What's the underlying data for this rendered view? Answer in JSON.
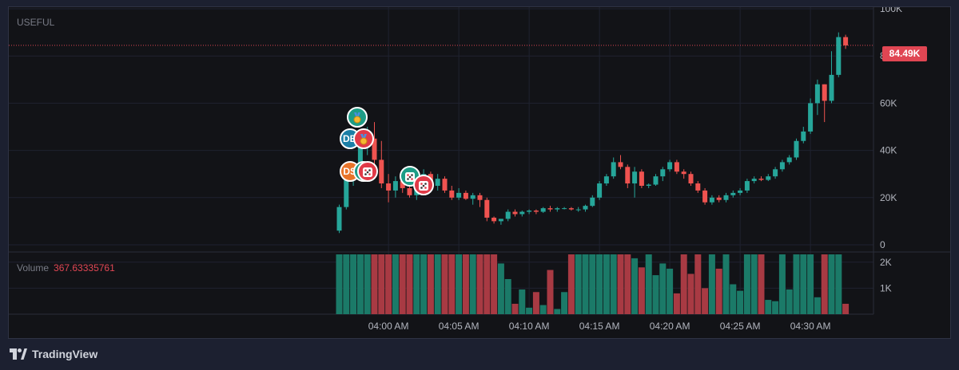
{
  "pane_title": "USEFUL",
  "last_price_label": "84.49K",
  "volume": {
    "label": "Volume",
    "value": "367.63335761"
  },
  "brand": "TradingView",
  "colors": {
    "up": "#26a69a",
    "down": "#ef5350",
    "price_tag": "#e04653",
    "background": "#121317",
    "grid": "#1f2230",
    "text": "#b2b5be"
  },
  "markers": [
    {
      "label": "",
      "icon": "medal-icon",
      "color": "#1d9c86",
      "time": "03:57:45",
      "price": 54000
    },
    {
      "label": "DB",
      "icon": "",
      "color": "#1b7fa6",
      "time": "03:57:15",
      "price": 45000
    },
    {
      "label": "",
      "icon": "medal-icon",
      "color": "#e03a48",
      "time": "03:58:15",
      "price": 45000
    },
    {
      "label": "DS",
      "icon": "",
      "color": "#e8742a",
      "time": "03:57:15",
      "price": 31000
    },
    {
      "label": "",
      "icon": "dice-icon",
      "color": "#1d9c86",
      "time": "03:58:15",
      "price": 31000
    },
    {
      "label": "",
      "icon": "dice-icon",
      "color": "#e03a48",
      "time": "03:58:30",
      "price": 31000
    },
    {
      "label": "",
      "icon": "dice-icon",
      "color": "#1d9c86",
      "time": "04:01:30",
      "price": 29000
    },
    {
      "label": "",
      "icon": "dice-icon",
      "color": "#e03a48",
      "time": "04:02:30",
      "price": 25500
    }
  ],
  "chart_data": {
    "type": "candlestick",
    "title": "USEFUL",
    "x_axis": {
      "tick_labels": [
        "04:00 AM",
        "04:05 AM",
        "04:10 AM",
        "04:15 AM",
        "04:20 AM",
        "04:25 AM",
        "04:30 AM"
      ]
    },
    "y_axis": {
      "tick_labels": [
        "0",
        "20K",
        "40K",
        "60K",
        "80K",
        "100K"
      ],
      "range": [
        0,
        100000
      ]
    },
    "volume_axis": {
      "tick_labels": [
        "1K",
        "2K"
      ],
      "range": [
        0,
        2300
      ]
    },
    "last_price": 84490,
    "bar_interval_seconds": 30,
    "first_bar_time": "03:56:30",
    "ohlc": [
      [
        6000,
        17000,
        5000,
        16000
      ],
      [
        16000,
        30000,
        15000,
        29000
      ],
      [
        29000,
        35000,
        25000,
        34000
      ],
      [
        34000,
        48000,
        33000,
        42000
      ],
      [
        42000,
        50000,
        38000,
        45000
      ],
      [
        45000,
        52000,
        33000,
        36000
      ],
      [
        36000,
        44000,
        24000,
        26000
      ],
      [
        26000,
        30000,
        18000,
        23000
      ],
      [
        23000,
        29000,
        20000,
        27000
      ],
      [
        27000,
        29000,
        22000,
        24000
      ],
      [
        24000,
        28000,
        20000,
        21000
      ],
      [
        21000,
        30000,
        19000,
        28000
      ],
      [
        28000,
        32000,
        26000,
        30000
      ],
      [
        30000,
        31000,
        24000,
        25000
      ],
      [
        25000,
        30000,
        23000,
        28000
      ],
      [
        28000,
        29000,
        22000,
        23000
      ],
      [
        23000,
        25000,
        19000,
        20000
      ],
      [
        20000,
        24000,
        19000,
        22000
      ],
      [
        22000,
        23000,
        19000,
        19500
      ],
      [
        19500,
        22000,
        17000,
        21000
      ],
      [
        21000,
        22000,
        16000,
        19000
      ],
      [
        19000,
        20000,
        10000,
        11500
      ],
      [
        11500,
        12000,
        9000,
        10000
      ],
      [
        10000,
        11000,
        8500,
        11000
      ],
      [
        11000,
        15000,
        10000,
        14000
      ],
      [
        14000,
        15000,
        12000,
        13000
      ],
      [
        13000,
        14500,
        12000,
        14000
      ],
      [
        14000,
        15000,
        13000,
        14500
      ],
      [
        14500,
        15000,
        13000,
        14000
      ],
      [
        14000,
        16000,
        13500,
        15500
      ],
      [
        15500,
        16500,
        14000,
        15000
      ],
      [
        15000,
        16000,
        14000,
        15500
      ],
      [
        15500,
        16000,
        15000,
        15500
      ],
      [
        15500,
        16000,
        14500,
        15000
      ],
      [
        15000,
        16000,
        14000,
        15000
      ],
      [
        15000,
        17000,
        14000,
        16500
      ],
      [
        16500,
        21000,
        16000,
        20000
      ],
      [
        20000,
        27000,
        19000,
        26000
      ],
      [
        26000,
        30000,
        25000,
        29000
      ],
      [
        29000,
        37000,
        28000,
        35000
      ],
      [
        35000,
        38000,
        32000,
        33000
      ],
      [
        33000,
        34000,
        24000,
        26000
      ],
      [
        26000,
        33000,
        20000,
        31000
      ],
      [
        31000,
        32000,
        24000,
        25000
      ],
      [
        25000,
        26000,
        24000,
        25500
      ],
      [
        25500,
        30000,
        25000,
        29000
      ],
      [
        29000,
        33000,
        27000,
        32000
      ],
      [
        32000,
        36000,
        31000,
        35000
      ],
      [
        35000,
        36000,
        30000,
        31000
      ],
      [
        31000,
        32000,
        28000,
        30000
      ],
      [
        30000,
        31000,
        25000,
        26000
      ],
      [
        26000,
        27000,
        22000,
        23000
      ],
      [
        23000,
        24000,
        17000,
        18000
      ],
      [
        18000,
        21000,
        17000,
        20000
      ],
      [
        20000,
        21000,
        18000,
        19000
      ],
      [
        19000,
        22000,
        18000,
        21000
      ],
      [
        21000,
        23000,
        20000,
        22000
      ],
      [
        22000,
        24000,
        21000,
        23000
      ],
      [
        23000,
        28000,
        22000,
        27000
      ],
      [
        27000,
        29000,
        26000,
        28000
      ],
      [
        28000,
        29000,
        27000,
        27500
      ],
      [
        27500,
        30000,
        27000,
        29000
      ],
      [
        29000,
        33000,
        28000,
        32000
      ],
      [
        32000,
        36000,
        31000,
        35000
      ],
      [
        35000,
        38000,
        34000,
        37000
      ],
      [
        37000,
        45000,
        36000,
        44000
      ],
      [
        44000,
        50000,
        43000,
        48000
      ],
      [
        48000,
        62000,
        47000,
        60000
      ],
      [
        60000,
        70000,
        55000,
        68000
      ],
      [
        68000,
        68000,
        52000,
        61000
      ],
      [
        61000,
        82000,
        60000,
        72000
      ],
      [
        72000,
        90000,
        71000,
        88000
      ],
      [
        88000,
        89000,
        83000,
        84490
      ]
    ],
    "volume": [
      2300,
      2300,
      2300,
      2300,
      2300,
      2300,
      2300,
      2300,
      2300,
      2300,
      2300,
      2300,
      2300,
      2300,
      2300,
      2300,
      2300,
      2300,
      2300,
      2300,
      2300,
      2300,
      2300,
      1950,
      1350,
      400,
      950,
      250,
      850,
      350,
      1700,
      200,
      850,
      2300,
      2300,
      2300,
      2300,
      2300,
      2300,
      2300,
      2300,
      2300,
      2150,
      1800,
      2300,
      1500,
      1950,
      1750,
      800,
      2300,
      1550,
      2300,
      1000,
      2300,
      1750,
      2300,
      1150,
      900,
      2300,
      2300,
      2300,
      550,
      500,
      2300,
      950,
      2300,
      2300,
      2300,
      650,
      2300,
      2300,
      2300,
      400
    ]
  }
}
